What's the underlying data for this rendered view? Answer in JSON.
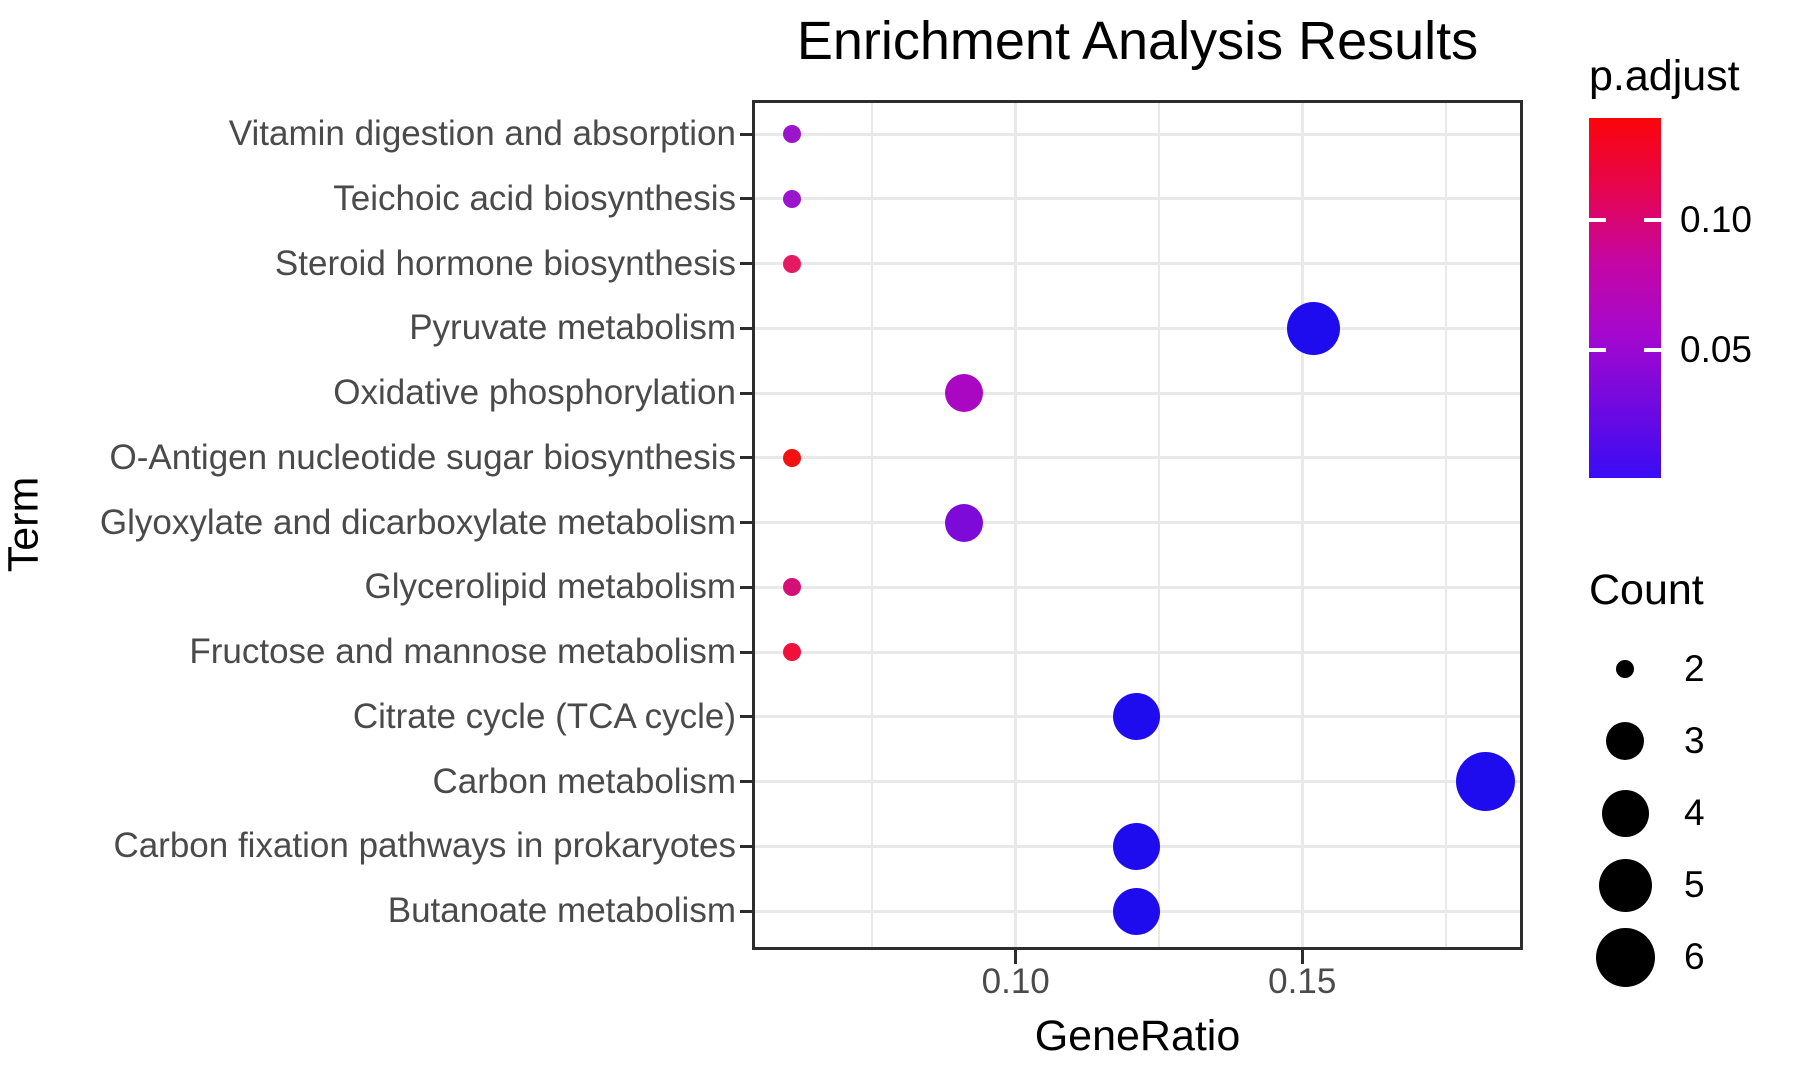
{
  "chart_data": {
    "type": "scatter",
    "title": "Enrichment Analysis Results",
    "xlabel": "GeneRatio",
    "ylabel": "Term",
    "xlim": [
      0.0545,
      0.188
    ],
    "x_ticks": [
      {
        "value": 0.1,
        "label": "0.10"
      },
      {
        "value": 0.15,
        "label": "0.15"
      }
    ],
    "x_minor_gridlines": [
      0.075,
      0.125,
      0.175
    ],
    "grid": true,
    "legend_position": "right",
    "points": [
      {
        "term": "Vitamin digestion and absorption",
        "gene_ratio": 0.061,
        "count": 2,
        "p_adjust_approx": 0.04,
        "color": "#9b15cd"
      },
      {
        "term": "Teichoic acid biosynthesis",
        "gene_ratio": 0.061,
        "count": 2,
        "p_adjust_approx": 0.04,
        "color": "#9b15cd"
      },
      {
        "term": "Steroid hormone biosynthesis",
        "gene_ratio": 0.061,
        "count": 2,
        "p_adjust_approx": 0.08,
        "color": "#e41a61"
      },
      {
        "term": "Pyruvate metabolism",
        "gene_ratio": 0.152,
        "count": 5,
        "p_adjust_approx": 0.005,
        "color": "#1e0cee"
      },
      {
        "term": "Oxidative phosphorylation",
        "gene_ratio": 0.091,
        "count": 3,
        "p_adjust_approx": 0.046,
        "color": "#a907c2"
      },
      {
        "term": "O-Antigen nucleotide sugar biosynthesis",
        "gene_ratio": 0.061,
        "count": 2,
        "p_adjust_approx": 0.13,
        "color": "#f41111"
      },
      {
        "term": "Glyoxylate and dicarboxylate metabolism",
        "gene_ratio": 0.091,
        "count": 3,
        "p_adjust_approx": 0.03,
        "color": "#7d0ad8"
      },
      {
        "term": "Glycerolipid metabolism",
        "gene_ratio": 0.061,
        "count": 2,
        "p_adjust_approx": 0.075,
        "color": "#d50f75"
      },
      {
        "term": "Fructose and mannose metabolism",
        "gene_ratio": 0.061,
        "count": 2,
        "p_adjust_approx": 0.095,
        "color": "#f0103c"
      },
      {
        "term": "Citrate cycle (TCA cycle)",
        "gene_ratio": 0.121,
        "count": 4,
        "p_adjust_approx": 0.005,
        "color": "#1e0cee"
      },
      {
        "term": "Carbon metabolism",
        "gene_ratio": 0.182,
        "count": 6,
        "p_adjust_approx": 0.005,
        "color": "#1e0cee"
      },
      {
        "term": "Carbon fixation pathways in prokaryotes",
        "gene_ratio": 0.121,
        "count": 4,
        "p_adjust_approx": 0.005,
        "color": "#1e0cee"
      },
      {
        "term": "Butanoate metabolism",
        "gene_ratio": 0.121,
        "count": 4,
        "p_adjust_approx": 0.005,
        "color": "#1e0cee"
      }
    ],
    "color_legend": {
      "title": "p.adjust",
      "ticks": [
        {
          "label": "0.10",
          "frac_from_top": 0.283
        },
        {
          "label": "0.05",
          "frac_from_top": 0.644
        }
      ],
      "gradient_top_to_bottom": [
        "#fa050a",
        "#e60550",
        "#c506a3",
        "#a508ce",
        "#7009e0",
        "#3a0cf4"
      ]
    },
    "size_legend": {
      "title": "Count",
      "entries": [
        {
          "label": "2",
          "radius": 9
        },
        {
          "label": "3",
          "radius": 19
        },
        {
          "label": "4",
          "radius": 23.5
        },
        {
          "label": "5",
          "radius": 26.5
        },
        {
          "label": "6",
          "radius": 29.5
        }
      ]
    }
  }
}
